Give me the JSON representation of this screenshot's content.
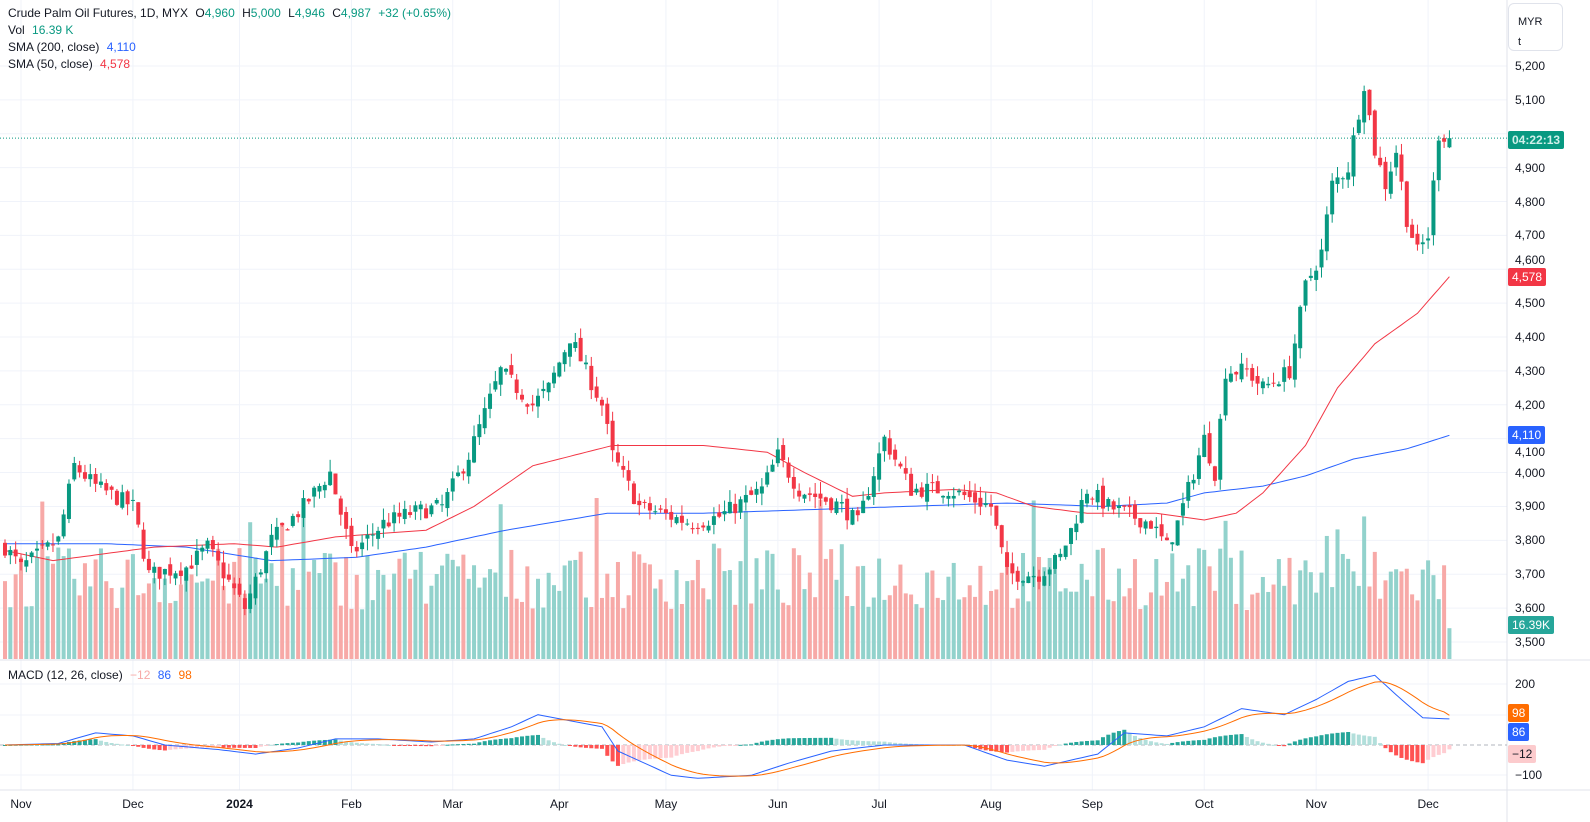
{
  "header": {
    "symbol": "Crude Palm Oil Futures, 1D, MYX",
    "o_label": "O",
    "o": "4,960",
    "h_label": "H",
    "h": "5,000",
    "l_label": "L",
    "l": "4,946",
    "c_label": "C",
    "c": "4,987",
    "change": "+32 (+0.65%)"
  },
  "vol_legend": {
    "label": "Vol",
    "value": "16.39 K"
  },
  "sma200_legend": {
    "label": "SMA (200, close)",
    "value": "4,110"
  },
  "sma50_legend": {
    "label": "SMA (50, close)",
    "value": "4,578"
  },
  "macd_legend": {
    "label": "MACD (12, 26, close)",
    "hist": "−12",
    "macd": "86",
    "signal": "98"
  },
  "currency": {
    "code": "MYR",
    "unit": "t"
  },
  "countdown": "04:22:13",
  "tags": {
    "sma50": "4,578",
    "sma200": "4,110",
    "volume": "16.39K",
    "macd_signal": "98",
    "macd": "86",
    "hist": "−12"
  },
  "colors": {
    "up": "#089981",
    "down": "#f23645",
    "sma50": "#f23645",
    "sma200": "#2962ff",
    "macd": "#2962ff",
    "signal": "#ff6d00"
  },
  "chart_data": {
    "type": "candlestick",
    "bars": 272,
    "price_axis": {
      "ylim": [
        3450,
        5250
      ],
      "ticks": [
        "5,200",
        "5,100",
        "4,900",
        "4,800",
        "4,700",
        "4,600",
        "4,500",
        "4,400",
        "4,300",
        "4,200",
        "4,100",
        "4,000",
        "3,900",
        "3,800",
        "3,700",
        "3,600",
        "3,500"
      ]
    },
    "macd_axis": {
      "ylim": [
        -130,
        250
      ],
      "ticks": [
        "200",
        "−100"
      ]
    },
    "x_ticks": [
      {
        "label": "Nov",
        "bar": 3
      },
      {
        "label": "Dec",
        "bar": 24
      },
      {
        "label": "2024",
        "bar": 44
      },
      {
        "label": "Feb",
        "bar": 65
      },
      {
        "label": "Mar",
        "bar": 84
      },
      {
        "label": "Apr",
        "bar": 104
      },
      {
        "label": "May",
        "bar": 124
      },
      {
        "label": "Jun",
        "bar": 145
      },
      {
        "label": "Jul",
        "bar": 164
      },
      {
        "label": "Aug",
        "bar": 185
      },
      {
        "label": "Sep",
        "bar": 204
      },
      {
        "label": "Oct",
        "bar": 225
      },
      {
        "label": "Nov",
        "bar": 246
      },
      {
        "label": "Dec",
        "bar": 267
      }
    ],
    "close_keypoints": [
      [
        0,
        3780
      ],
      [
        3,
        3720
      ],
      [
        10,
        3800
      ],
      [
        13,
        4020
      ],
      [
        17,
        3960
      ],
      [
        24,
        3900
      ],
      [
        27,
        3700
      ],
      [
        34,
        3720
      ],
      [
        38,
        3780
      ],
      [
        45,
        3600
      ],
      [
        50,
        3800
      ],
      [
        56,
        3900
      ],
      [
        61,
        4000
      ],
      [
        65,
        3760
      ],
      [
        71,
        3850
      ],
      [
        76,
        3880
      ],
      [
        82,
        3900
      ],
      [
        87,
        4050
      ],
      [
        93,
        4300
      ],
      [
        99,
        4200
      ],
      [
        102,
        4250
      ],
      [
        106,
        4400
      ],
      [
        112,
        4200
      ],
      [
        114,
        4050
      ],
      [
        119,
        3900
      ],
      [
        129,
        3850
      ],
      [
        134,
        3870
      ],
      [
        142,
        3950
      ],
      [
        145,
        4050
      ],
      [
        149,
        3950
      ],
      [
        157,
        3900
      ],
      [
        160,
        3850
      ],
      [
        165,
        4100
      ],
      [
        170,
        3950
      ],
      [
        177,
        3950
      ],
      [
        185,
        3900
      ],
      [
        188,
        3700
      ],
      [
        194,
        3700
      ],
      [
        198,
        3750
      ],
      [
        203,
        3950
      ],
      [
        207,
        3900
      ],
      [
        215,
        3850
      ],
      [
        218,
        3780
      ],
      [
        220,
        3850
      ],
      [
        225,
        4100
      ],
      [
        227,
        4000
      ],
      [
        229,
        4300
      ],
      [
        233,
        4300
      ],
      [
        236,
        4250
      ],
      [
        241,
        4300
      ],
      [
        244,
        4550
      ],
      [
        247,
        4650
      ],
      [
        249,
        4850
      ],
      [
        252,
        4900
      ],
      [
        255,
        5150
      ],
      [
        257,
        4950
      ],
      [
        259,
        4850
      ],
      [
        261,
        4950
      ],
      [
        263,
        4750
      ],
      [
        265,
        4650
      ],
      [
        267,
        4700
      ],
      [
        269,
        5000
      ],
      [
        271,
        4987
      ]
    ],
    "sma50_keypoints": [
      [
        0,
        3770
      ],
      [
        9,
        3740
      ],
      [
        28,
        3780
      ],
      [
        43,
        3790
      ],
      [
        51,
        3780
      ],
      [
        62,
        3810
      ],
      [
        79,
        3830
      ],
      [
        88,
        3900
      ],
      [
        99,
        4020
      ],
      [
        114,
        4080
      ],
      [
        131,
        4080
      ],
      [
        143,
        4060
      ],
      [
        150,
        4000
      ],
      [
        159,
        3930
      ],
      [
        165,
        3940
      ],
      [
        178,
        3950
      ],
      [
        186,
        3940
      ],
      [
        193,
        3900
      ],
      [
        203,
        3880
      ],
      [
        216,
        3880
      ],
      [
        225,
        3860
      ],
      [
        231,
        3880
      ],
      [
        236,
        3940
      ],
      [
        244,
        4080
      ],
      [
        250,
        4250
      ],
      [
        257,
        4380
      ],
      [
        265,
        4470
      ],
      [
        271,
        4578
      ]
    ],
    "sma200_keypoints": [
      [
        0,
        3790
      ],
      [
        19,
        3790
      ],
      [
        34,
        3780
      ],
      [
        50,
        3740
      ],
      [
        66,
        3750
      ],
      [
        79,
        3780
      ],
      [
        94,
        3830
      ],
      [
        113,
        3880
      ],
      [
        131,
        3880
      ],
      [
        150,
        3890
      ],
      [
        169,
        3900
      ],
      [
        188,
        3910
      ],
      [
        206,
        3900
      ],
      [
        218,
        3910
      ],
      [
        225,
        3940
      ],
      [
        236,
        3960
      ],
      [
        244,
        3990
      ],
      [
        253,
        4040
      ],
      [
        263,
        4070
      ],
      [
        271,
        4110
      ]
    ],
    "macd_keypoints": [
      [
        0,
        0
      ],
      [
        10,
        5
      ],
      [
        17,
        40
      ],
      [
        24,
        30
      ],
      [
        30,
        0
      ],
      [
        40,
        -15
      ],
      [
        47,
        -30
      ],
      [
        55,
        -10
      ],
      [
        62,
        20
      ],
      [
        70,
        20
      ],
      [
        80,
        10
      ],
      [
        88,
        20
      ],
      [
        95,
        60
      ],
      [
        100,
        100
      ],
      [
        106,
        80
      ],
      [
        112,
        60
      ],
      [
        115,
        -20
      ],
      [
        120,
        -60
      ],
      [
        125,
        -100
      ],
      [
        130,
        -110
      ],
      [
        140,
        -100
      ],
      [
        147,
        -60
      ],
      [
        155,
        -20
      ],
      [
        165,
        0
      ],
      [
        180,
        0
      ],
      [
        188,
        -50
      ],
      [
        195,
        -70
      ],
      [
        205,
        -30
      ],
      [
        210,
        40
      ],
      [
        218,
        30
      ],
      [
        225,
        60
      ],
      [
        232,
        120
      ],
      [
        240,
        100
      ],
      [
        246,
        150
      ],
      [
        252,
        210
      ],
      [
        257,
        230
      ],
      [
        262,
        150
      ],
      [
        266,
        90
      ],
      [
        271,
        86
      ]
    ],
    "last_volume_k": 16.39
  }
}
